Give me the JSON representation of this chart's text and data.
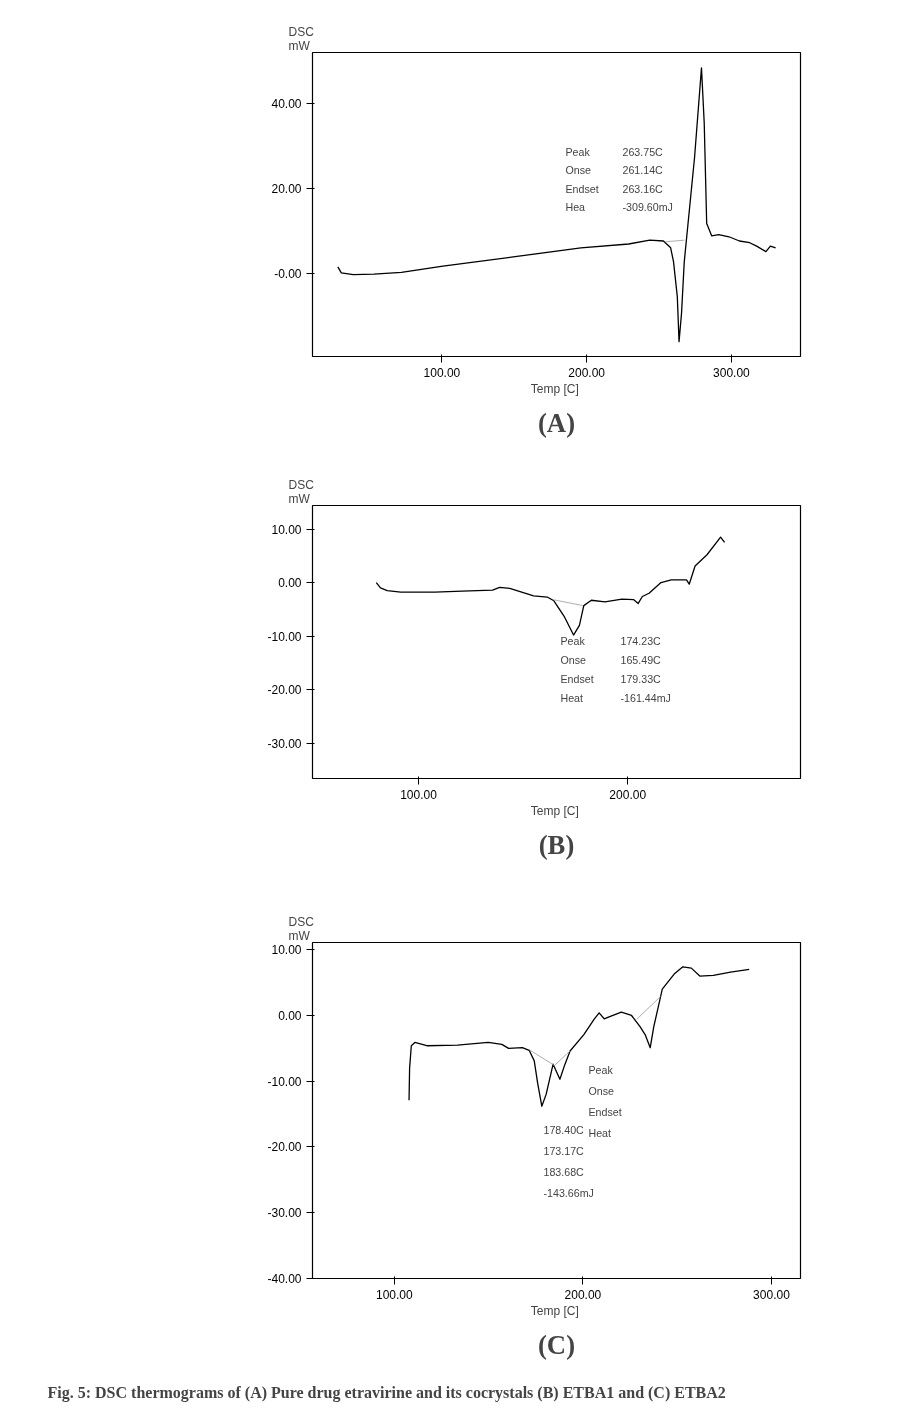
{
  "chart_data": [
    {
      "type": "line",
      "title": "(A)",
      "xlabel": "Temp  [C]",
      "ylabel": "DSC\nmW",
      "grid": false,
      "line_style": "solid",
      "xlim": [
        10.6,
        347.7
      ],
      "ylim": [
        -19.6,
        52
      ],
      "xticks": [
        {
          "value": 100,
          "label": "100.00"
        },
        {
          "value": 200,
          "label": "200.00"
        },
        {
          "value": 300,
          "label": "300.00"
        }
      ],
      "yticks": [
        {
          "value": 0,
          "label": "-0.00"
        },
        {
          "value": 20,
          "label": "20.00"
        },
        {
          "value": 40,
          "label": "40.00"
        }
      ],
      "series": [
        {
          "color": "#000000",
          "x": [
            28.1,
            30.5,
            38.8,
            53,
            72,
            100.7,
            148,
            196,
            229,
            243.6,
            253,
            258,
            260,
            262.6,
            263.8,
            265.5,
            267.4,
            274.5,
            279.3,
            281.2,
            282.9,
            286.4,
            291.2,
            298.3,
            305.5,
            312.6,
            317.4,
            323.8,
            326.9,
            330.5
          ],
          "values": [
            1.5,
            0.1,
            -0.3,
            -0.2,
            0.2,
            1.7,
            3.8,
            6,
            6.9,
            7.8,
            7.6,
            6,
            2.7,
            -5.5,
            -16.1,
            -9.5,
            2.7,
            27.2,
            48.4,
            35.3,
            11.7,
            8.8,
            9.1,
            8.6,
            7.6,
            7.2,
            6.4,
            5.1,
            6.4,
            6.0
          ]
        },
        {
          "color": "#999999",
          "x": [
            254,
            267.4
          ],
          "values": [
            7.4,
            7.8
          ]
        }
      ],
      "annotations": [
        "Peak",
        "Onse",
        "Endset",
        "Hea",
        "263.75C",
        "261.14C",
        "263.16C",
        "-309.60mJ"
      ]
    },
    {
      "type": "line",
      "title": "(B)",
      "xlabel": "Temp  [C]",
      "ylabel": "DSC\nmW",
      "grid": false,
      "line_style": "solid",
      "xlim": [
        49.3,
        282.6
      ],
      "ylim": [
        -36.6,
        14.4
      ],
      "xticks": [
        {
          "value": 100,
          "label": "100.00"
        },
        {
          "value": 200,
          "label": "200.00"
        }
      ],
      "yticks": [
        {
          "value": -30,
          "label": "-30.00"
        },
        {
          "value": -20,
          "label": "-20.00"
        },
        {
          "value": -10,
          "label": "-10.00"
        },
        {
          "value": 0,
          "label": "0.00"
        },
        {
          "value": 10,
          "label": "10.00"
        }
      ],
      "series": [
        {
          "color": "#000000",
          "x": [
            79.8,
            81.8,
            85,
            91.5,
            107.8,
            120.8,
            135.4,
            138.7,
            143.6,
            155,
            161.5,
            164.7,
            169.6,
            174.1,
            176.9,
            179,
            182.6,
            189.1,
            197.2,
            202.9,
            205,
            207,
            210.2,
            215.9,
            220.8,
            228.1,
            229.4,
            232.2,
            237.9,
            244.4,
            246.3
          ],
          "values": [
            0,
            -1.0,
            -1.5,
            -1.8,
            -1.8,
            -1.6,
            -1.4,
            -0.9,
            -1.1,
            -2.5,
            -2.7,
            -3.4,
            -6.3,
            -9.8,
            -8,
            -4.3,
            -3.3,
            -3.6,
            -3.1,
            -3.2,
            -3.9,
            -2.6,
            -2.0,
            0,
            0.5,
            0.5,
            -0.3,
            3.1,
            5.2,
            8.5,
            7.5
          ]
        },
        {
          "color": "#999999",
          "x": [
            164.4,
            178.5
          ],
          "values": [
            -3.2,
            -4.3
          ]
        }
      ],
      "annotations": [
        "Peak",
        "Onse",
        "Endset",
        "Heat",
        "174.23C",
        "165.49C",
        "179.33C",
        "-161.44mJ"
      ]
    },
    {
      "type": "line",
      "title": "(C)",
      "xlabel": "Temp  [C]",
      "ylabel": "DSC\nmW",
      "grid": false,
      "line_style": "solid",
      "xlim": [
        56.6,
        315.4
      ],
      "ylim": [
        -40,
        11.1
      ],
      "xticks": [
        {
          "value": 100,
          "label": "100.00"
        },
        {
          "value": 200,
          "label": "200.00"
        },
        {
          "value": 300,
          "label": "300.00"
        }
      ],
      "yticks": [
        {
          "value": -40,
          "label": "-40.00"
        },
        {
          "value": -30,
          "label": "-30.00"
        },
        {
          "value": -20,
          "label": "-20.00"
        },
        {
          "value": -10,
          "label": "-10.00"
        },
        {
          "value": 0,
          "label": "0.00"
        },
        {
          "value": 10,
          "label": "10.00"
        }
      ],
      "series": [
        {
          "color": "#000000",
          "x": [
            107.8,
            108.1,
            109,
            110.9,
            117.2,
            133.5,
            149.8,
            157,
            160.6,
            167.9,
            171.5,
            174.2,
            176,
            178.2,
            180.5,
            184.2,
            187.8,
            190.5,
            193.2,
            200.5,
            205.9,
            208.6,
            211.3,
            214.9,
            220.4,
            225.8,
            230.3,
            233,
            235.7,
            237.6,
            242.1,
            248.4,
            253,
            257.5,
            262,
            269.2,
            278.3,
            288.2
          ],
          "values": [
            -12.9,
            -8,
            -4.6,
            -4.1,
            -4.6,
            -4.5,
            -4.1,
            -4.4,
            -5.0,
            -4.9,
            -5.3,
            -6.9,
            -10.3,
            -13.8,
            -12,
            -7.4,
            -9.7,
            -7.4,
            -5.4,
            -2.9,
            -0.6,
            0.4,
            -0.5,
            -0.1,
            0.5,
            0,
            -1.7,
            -2.9,
            -4.9,
            -1.7,
            4,
            6.3,
            7.4,
            7.2,
            6.0,
            6.1,
            6.6,
            7.0
          ]
        },
        {
          "color": "#999999",
          "x": [
            171.5,
            184.9,
            193.2
          ],
          "values": [
            -5.2,
            -7.6,
            -5.4
          ]
        },
        {
          "color": "#999999",
          "x": [
            228.5,
            241.2
          ],
          "values": [
            -0.6,
            2.9
          ]
        }
      ],
      "annotations": [
        "Peak",
        "Onse",
        "Endset",
        "Heat",
        "178.40C",
        "173.17C",
        "183.68C",
        "-143.66mJ",
        "Fig. 5: DSC thermograms of (A) Pure drug etravirine and its cocrystals (B) ETBA1 and (C) ETBA2"
      ]
    }
  ]
}
